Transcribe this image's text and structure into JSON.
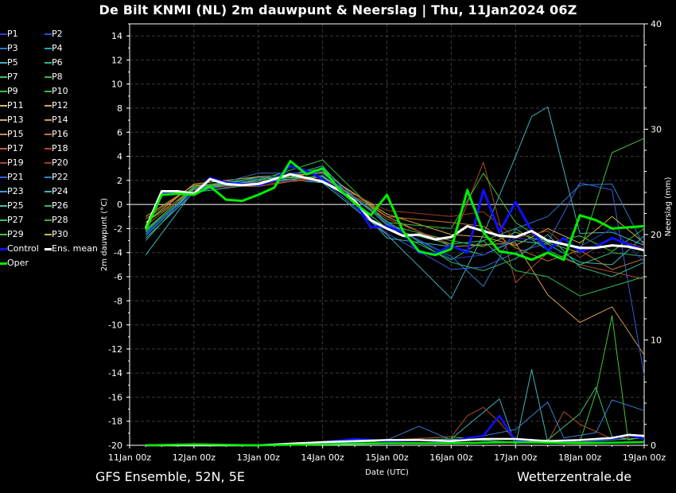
{
  "header": {
    "title": "De Bilt KNMI  (NL)  2m dauwpunt & Neerslag | Thu, 11Jan2024 06Z"
  },
  "footer": {
    "left": "GFS Ensemble, 52N, 5E",
    "right": "Wetterzentrale.de"
  },
  "legend": [
    {
      "label": "P1",
      "color": "#2a3fc9"
    },
    {
      "label": "P2",
      "color": "#2456d8"
    },
    {
      "label": "P3",
      "color": "#2f78c8"
    },
    {
      "label": "P4",
      "color": "#2a9fc3"
    },
    {
      "label": "P5",
      "color": "#3fb0b6"
    },
    {
      "label": "P6",
      "color": "#2fb88a"
    },
    {
      "label": "P7",
      "color": "#3cc070"
    },
    {
      "label": "P8",
      "color": "#2fbb55"
    },
    {
      "label": "P9",
      "color": "#3cbf48"
    },
    {
      "label": "P10",
      "color": "#35c23a"
    },
    {
      "label": "P11",
      "color": "#c7c060"
    },
    {
      "label": "P12",
      "color": "#d2b040"
    },
    {
      "label": "P13",
      "color": "#d8a86a"
    },
    {
      "label": "P14",
      "color": "#d19b46"
    },
    {
      "label": "P15",
      "color": "#cf8a55"
    },
    {
      "label": "P16",
      "color": "#c8752e"
    },
    {
      "label": "P17",
      "color": "#c06040"
    },
    {
      "label": "P18",
      "color": "#b04a2a"
    },
    {
      "label": "P19",
      "color": "#a8442e"
    },
    {
      "label": "P20",
      "color": "#a03a26"
    },
    {
      "label": "P21",
      "color": "#3b5bd8"
    },
    {
      "label": "P22",
      "color": "#3a7fd0"
    },
    {
      "label": "P23",
      "color": "#3aa2c8"
    },
    {
      "label": "P24",
      "color": "#3ab8b8"
    },
    {
      "label": "P25",
      "color": "#44c48e"
    },
    {
      "label": "P26",
      "color": "#33b870"
    },
    {
      "label": "P27",
      "color": "#3fc05a"
    },
    {
      "label": "P28",
      "color": "#30b845"
    },
    {
      "label": "P29",
      "color": "#44c33a"
    },
    {
      "label": "P30",
      "color": "#c9c04a"
    },
    {
      "label": "Control",
      "color": "#1010ff"
    },
    {
      "label": "Ens. mean",
      "color": "#ffffff"
    },
    {
      "label": "Oper",
      "color": "#00ee00"
    }
  ],
  "chart_data": {
    "type": "line",
    "title": "De Bilt KNMI  (NL)  2m dauwpunt & Neerslag | Thu, 11Jan2024 06Z",
    "xlabel": "Date (UTC)",
    "ylabel": "2m dauwpunt (°C)",
    "y2label": "Neerslag (mm)",
    "x_range_hours": [
      0,
      192
    ],
    "ylim": [
      -20,
      15
    ],
    "y2lim": [
      0,
      40
    ],
    "x_ticks": [
      {
        "h": 0,
        "label": "11Jan 00z"
      },
      {
        "h": 24,
        "label": "12Jan 00z"
      },
      {
        "h": 48,
        "label": "13Jan 00z"
      },
      {
        "h": 72,
        "label": "14Jan 00z"
      },
      {
        "h": 96,
        "label": "15Jan 00z"
      },
      {
        "h": 120,
        "label": "16Jan 00z"
      },
      {
        "h": 144,
        "label": "17Jan 00z"
      },
      {
        "h": 168,
        "label": "18Jan 00z"
      },
      {
        "h": 192,
        "label": "19Jan 00z"
      }
    ],
    "y_ticks": [
      14,
      12,
      10,
      8,
      6,
      4,
      2,
      0,
      -2,
      -4,
      -6,
      -8,
      -10,
      -12,
      -14,
      -16,
      -18,
      -20
    ],
    "y2_ticks": [
      40,
      30,
      20,
      10,
      0
    ],
    "grid": true,
    "series": [
      {
        "name": "Control",
        "hours": [
          6,
          12,
          18,
          24,
          30,
          36,
          42,
          48,
          54,
          60,
          66,
          72,
          78,
          84,
          90,
          96,
          102,
          108,
          114,
          120,
          126,
          132,
          138,
          144,
          150,
          156,
          162,
          168,
          174,
          180,
          186,
          192
        ],
        "values": [
          -2.1,
          1.0,
          1.1,
          0.8,
          2.2,
          1.8,
          1.7,
          1.6,
          2.0,
          3.2,
          2.8,
          2.1,
          1.2,
          0.2,
          -1.9,
          -1.8,
          -2.3,
          -4.0,
          -4.1,
          -3.4,
          -4.0,
          1.2,
          -2.3,
          0.2,
          -2.2,
          -3.8,
          -2.8,
          -3.9,
          -3.5,
          -2.8,
          -3.3,
          -3.8
        ]
      },
      {
        "name": "Ens. mean",
        "hours": [
          6,
          12,
          18,
          24,
          30,
          36,
          42,
          48,
          54,
          60,
          66,
          72,
          78,
          84,
          90,
          96,
          102,
          108,
          114,
          120,
          126,
          132,
          138,
          144,
          150,
          156,
          162,
          168,
          174,
          180,
          186,
          192
        ],
        "values": [
          -2.0,
          1.1,
          1.1,
          0.9,
          2.1,
          1.7,
          1.6,
          1.7,
          2.1,
          2.5,
          2.2,
          1.9,
          1.2,
          0.3,
          -1.3,
          -2.0,
          -2.6,
          -2.5,
          -2.9,
          -2.7,
          -1.8,
          -2.2,
          -2.6,
          -2.7,
          -2.2,
          -3.0,
          -3.3,
          -3.6,
          -3.6,
          -3.4,
          -3.5,
          -3.8
        ]
      },
      {
        "name": "Oper",
        "hours": [
          6,
          12,
          18,
          24,
          30,
          36,
          42,
          48,
          54,
          60,
          66,
          72,
          78,
          84,
          90,
          96,
          102,
          108,
          114,
          120,
          126,
          132,
          138,
          144,
          150,
          156,
          162,
          168,
          174,
          180,
          186,
          192
        ],
        "values": [
          -2.1,
          0.8,
          0.9,
          0.8,
          1.5,
          0.4,
          0.3,
          0.8,
          1.4,
          3.6,
          2.5,
          3.0,
          1.3,
          0.1,
          -0.9,
          0.8,
          -2.2,
          -3.9,
          -4.2,
          -3.7,
          1.2,
          -2.3,
          -3.9,
          -4.1,
          -4.6,
          -4.0,
          -4.6,
          -0.9,
          -1.3,
          -2.0,
          -1.9,
          -1.8
        ]
      },
      {
        "name": "P5",
        "hours": [
          6,
          24,
          48,
          72,
          96,
          120,
          132,
          144,
          150,
          156,
          168,
          180,
          192
        ],
        "values": [
          -4.2,
          1.2,
          2.3,
          1.8,
          -2.5,
          -7.8,
          -2.5,
          4.0,
          7.3,
          8.1,
          -2.4,
          -2.3,
          -3.4
        ]
      },
      {
        "name": "P29",
        "hours": [
          6,
          24,
          48,
          72,
          96,
          120,
          132,
          144,
          156,
          168,
          180,
          192
        ],
        "values": [
          -1.5,
          1.3,
          2.0,
          3.0,
          -1.7,
          -3.0,
          -3.5,
          -2.3,
          -3.2,
          -4.0,
          4.3,
          5.5
        ]
      },
      {
        "name": "P14",
        "hours": [
          6,
          24,
          48,
          72,
          96,
          120,
          144,
          156,
          168,
          180,
          192
        ],
        "values": [
          -1.0,
          1.6,
          1.9,
          2.7,
          -1.0,
          -3.5,
          -3.2,
          -7.5,
          -9.8,
          -8.5,
          -12.5
        ]
      },
      {
        "name": "P18",
        "hours": [
          6,
          24,
          48,
          72,
          96,
          120,
          132,
          144,
          156,
          168,
          180,
          192
        ],
        "values": [
          -1.8,
          1.5,
          1.8,
          2.3,
          -1.2,
          -3.3,
          3.5,
          -6.5,
          -4.0,
          -5.0,
          -5.6,
          -6.2
        ]
      },
      {
        "name": "P21",
        "hours": [
          6,
          24,
          48,
          72,
          96,
          120,
          132,
          144,
          156,
          168,
          180,
          192
        ],
        "values": [
          -2.5,
          1.3,
          1.9,
          2.0,
          -2.4,
          -5.4,
          -5.2,
          -4.0,
          -3.2,
          1.8,
          1.2,
          -14.2
        ]
      },
      {
        "name": "P8",
        "hours": [
          6,
          24,
          48,
          72,
          96,
          120,
          132,
          144,
          156,
          168,
          180,
          192
        ],
        "values": [
          -2.2,
          1.5,
          2.2,
          2.3,
          -2.0,
          -4.6,
          -3.0,
          -5.5,
          -6.0,
          -7.6,
          -6.8,
          -6.0
        ]
      },
      {
        "name": "P12",
        "hours": [
          6,
          24,
          48,
          72,
          96,
          120,
          132,
          144,
          156,
          168,
          180,
          192
        ],
        "values": [
          -1.5,
          1.7,
          2.3,
          2.6,
          -0.8,
          -2.5,
          -2.7,
          -3.4,
          -2.0,
          -3.2,
          -1.0,
          -3.2
        ]
      },
      {
        "name": "P24",
        "hours": [
          6,
          24,
          48,
          72,
          96,
          120,
          132,
          144,
          156,
          168,
          180,
          192
        ],
        "values": [
          -2.8,
          1.0,
          1.7,
          3.2,
          -2.8,
          -3.5,
          -4.2,
          -3.0,
          -3.3,
          -4.8,
          -5.0,
          -2.6
        ]
      },
      {
        "name": "P16",
        "hours": [
          6,
          24,
          48,
          72,
          96,
          120,
          132,
          144,
          156,
          168,
          180,
          192
        ],
        "values": [
          -1.2,
          1.6,
          1.5,
          2.3,
          -1.0,
          -1.5,
          -1.8,
          -3.6,
          -4.7,
          -3.8,
          -5.4,
          -4.5
        ]
      },
      {
        "name": "P3",
        "hours": [
          6,
          24,
          48,
          72,
          96,
          120,
          132,
          144,
          156,
          168,
          180,
          192
        ],
        "values": [
          -2.6,
          1.2,
          2.6,
          2.6,
          -1.6,
          -4.3,
          -6.8,
          -2.0,
          -1.0,
          1.6,
          1.7,
          -3.5
        ]
      },
      {
        "name": "P10",
        "hours": [
          6,
          24,
          48,
          72,
          96,
          120,
          132,
          144,
          156,
          168,
          180,
          192
        ],
        "values": [
          -2.1,
          1.4,
          2.0,
          3.7,
          -1.5,
          -2.0,
          2.6,
          -1.5,
          -3.2,
          -2.6,
          -3.9,
          -2.0
        ]
      },
      {
        "name": "P26",
        "hours": [
          6,
          24,
          48,
          72,
          96,
          120,
          132,
          144,
          156,
          168,
          180,
          192
        ],
        "values": [
          -3.0,
          1.4,
          2.1,
          2.3,
          -2.0,
          -3.3,
          -3.0,
          -2.0,
          -3.8,
          -5.0,
          -4.0,
          -4.3
        ]
      },
      {
        "name": "P20",
        "hours": [
          6,
          24,
          48,
          72,
          96,
          120,
          132,
          144,
          156,
          168,
          180,
          192
        ],
        "values": [
          -1.7,
          1.2,
          1.7,
          2.1,
          -0.5,
          -1.0,
          -0.6,
          -2.8,
          -2.2,
          -4.4,
          -2.8,
          -3.6
        ]
      },
      {
        "name": "P1",
        "hours": [
          6,
          24,
          48,
          72,
          96,
          120,
          132,
          144,
          156,
          168,
          180,
          192
        ],
        "values": [
          -2.4,
          1.0,
          2.2,
          2.8,
          -1.5,
          -4.5,
          -4.2,
          -2.8,
          -3.0,
          -3.5,
          -2.0,
          -4.8
        ]
      },
      {
        "name": "P6",
        "hours": [
          6,
          24,
          48,
          72,
          96,
          120,
          132,
          144,
          156,
          168,
          180,
          192
        ],
        "values": [
          -2.3,
          1.3,
          1.8,
          2.4,
          -1.4,
          -4.8,
          -5.5,
          -4.5,
          -2.5,
          -5.2,
          -6.0,
          -4.8
        ]
      }
    ],
    "precip_series": [
      {
        "name": "P5",
        "hours": [
          72,
          96,
          120,
          138,
          144,
          150,
          156,
          168,
          180,
          192
        ],
        "mm": [
          0.2,
          0.4,
          0.6,
          4.4,
          0.0,
          7.2,
          0.3,
          0.3,
          0.5,
          0.7
        ]
      },
      {
        "name": "P29",
        "hours": [
          72,
          96,
          120,
          144,
          156,
          168,
          174,
          180,
          186,
          192
        ],
        "mm": [
          0.2,
          0.5,
          0.8,
          0.2,
          0.4,
          0.3,
          5.0,
          12.3,
          0.5,
          0.8
        ]
      },
      {
        "name": "P18",
        "hours": [
          72,
          96,
          120,
          126,
          132,
          138,
          144,
          156,
          162,
          168,
          180,
          192
        ],
        "mm": [
          0.2,
          0.5,
          0.8,
          2.8,
          3.6,
          2.2,
          0.4,
          0.3,
          3.2,
          2.0,
          0.6,
          1.0
        ]
      },
      {
        "name": "P22",
        "hours": [
          72,
          96,
          108,
          120,
          132,
          144,
          156,
          162,
          174,
          180,
          192
        ],
        "mm": [
          0.2,
          0.5,
          1.8,
          0.5,
          0.9,
          1.5,
          4.1,
          0.7,
          1.2,
          4.3,
          3.3
        ]
      },
      {
        "name": "P7",
        "hours": [
          72,
          96,
          120,
          144,
          156,
          168,
          174,
          180,
          186,
          192
        ],
        "mm": [
          0.3,
          0.4,
          0.6,
          0.3,
          0.5,
          3.0,
          5.5,
          0.8,
          0.6,
          0.7
        ]
      },
      {
        "name": "Control",
        "hours": [
          72,
          84,
          96,
          108,
          120,
          126,
          132,
          138,
          144,
          150,
          156,
          168,
          180,
          186,
          192
        ],
        "mm": [
          0.3,
          0.6,
          0.4,
          0.5,
          0.3,
          0.7,
          0.9,
          2.8,
          0.4,
          0.5,
          0.3,
          0.5,
          0.6,
          1.0,
          0.6
        ]
      },
      {
        "name": "Ens. mean",
        "hours": [
          6,
          48,
          72,
          84,
          96,
          108,
          120,
          132,
          144,
          156,
          168,
          180,
          186,
          192
        ],
        "mm": [
          0.0,
          0.0,
          0.3,
          0.4,
          0.5,
          0.5,
          0.4,
          0.6,
          0.6,
          0.4,
          0.5,
          0.7,
          1.0,
          0.9
        ]
      },
      {
        "name": "Oper",
        "hours": [
          6,
          24,
          48,
          72,
          96,
          120,
          144,
          168,
          192
        ],
        "mm": [
          0.0,
          0.1,
          0.0,
          0.1,
          0.2,
          0.2,
          0.3,
          0.2,
          0.3
        ]
      }
    ]
  }
}
